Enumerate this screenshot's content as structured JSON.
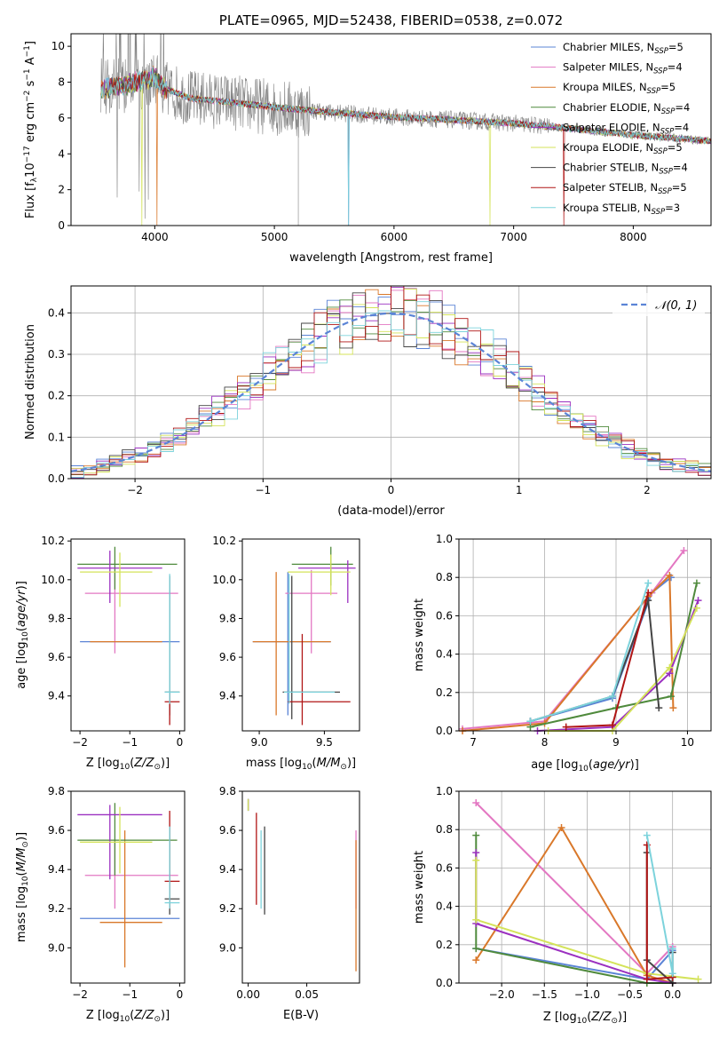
{
  "colors": {
    "Chabrier MILES": "#5b84d6",
    "Salpeter MILES": "#e377c2",
    "Kroupa MILES": "#d9782a",
    "Chabrier ELODIE": "#4f8a3c",
    "Salpeter ELODIE": "#9b30c0",
    "Kroupa ELODIE": "#d4e35a",
    "Chabrier STELIB": "#444444",
    "Salpeter STELIB": "#b01515",
    "Kroupa STELIB": "#7dd3dc",
    "data": "#808080",
    "normal": "#5b84d6"
  },
  "chart_data": [
    {
      "id": "spectrum",
      "type": "line",
      "title": "PLATE=0965, MJD=52438, FIBERID=0538, z=0.072",
      "xlabel": "wavelength [Angstrom, rest frame]",
      "ylabel_main": "Flux [f",
      "ylabel_sub1": "λ",
      "ylabel_mid": "10",
      "ylabel_sup": "−17",
      "ylabel_rest": " erg cm",
      "ylabel_sup2": "−2",
      "ylabel_mid2": " s",
      "ylabel_sup3": "−1",
      "ylabel_mid3": " A",
      "ylabel_sup4": "−1",
      "ylabel_end": "]",
      "xlim": [
        3300,
        8650
      ],
      "ylim": [
        0,
        10.7
      ],
      "xticks": [
        4000,
        5000,
        6000,
        7000,
        8000
      ],
      "yticks": [
        0,
        2,
        4,
        6,
        8,
        10
      ],
      "continuum": {
        "x": [
          3550,
          3700,
          3900,
          4000,
          4100,
          4300,
          4600,
          5000,
          5500,
          6000,
          6500,
          7000,
          7500,
          8000,
          8400,
          8650
        ],
        "y": [
          7.6,
          7.8,
          8.1,
          8.3,
          7.6,
          7.1,
          6.9,
          6.6,
          6.3,
          6.05,
          5.9,
          5.7,
          5.4,
          5.05,
          4.85,
          4.7
        ]
      },
      "legend": [
        {
          "model": "Chabrier MILES",
          "n": "5"
        },
        {
          "model": "Salpeter MILES",
          "n": "4"
        },
        {
          "model": "Kroupa MILES",
          "n": "5"
        },
        {
          "model": "Chabrier ELODIE",
          "n": "4"
        },
        {
          "model": "Salpeter ELODIE",
          "n": "4"
        },
        {
          "model": "Kroupa ELODIE",
          "n": "5"
        },
        {
          "model": "Chabrier STELIB",
          "n": "4"
        },
        {
          "model": "Salpeter STELIB",
          "n": "5"
        },
        {
          "model": "Kroupa STELIB",
          "n": "3"
        }
      ],
      "legend_prefix": "N",
      "legend_sub": "SSP",
      "legend_placement": "top-right"
    },
    {
      "id": "residuals",
      "type": "histogram",
      "xlabel": "(data-model)/error",
      "ylabel": "Normed distribution",
      "xlim": [
        -2.5,
        2.5
      ],
      "ylim": [
        0,
        0.465
      ],
      "xticks": [
        -2,
        -1,
        0,
        1,
        2
      ],
      "yticks": [
        0.0,
        0.1,
        0.2,
        0.3,
        0.4
      ],
      "legend_label": "𝒩(0, 1)",
      "legend_placement": "top-right",
      "bin_width": 0.1,
      "grid": true
    },
    {
      "id": "age_vs_Z",
      "type": "errorbar",
      "xlabel": "Z [log10(Z/Z⊙)]",
      "ylabel": "age  [log10(age/yr)]",
      "xlim": [
        -2.18,
        0.1
      ],
      "ylim": [
        9.22,
        10.21
      ],
      "xticks": [
        -2,
        -1,
        0
      ],
      "yticks": [
        9.4,
        9.6,
        9.8,
        10.0,
        10.2
      ],
      "grid": false,
      "points": [
        {
          "m": "Chabrier MILES",
          "x": -1.1,
          "y": 9.68,
          "xe": [
            -2.0,
            0.0
          ],
          "ye": [
            9.68,
            9.68
          ]
        },
        {
          "m": "Salpeter MILES",
          "x": -1.3,
          "y": 9.93,
          "xe": [
            -1.9,
            -0.03
          ],
          "ye": [
            9.62,
            10.04
          ]
        },
        {
          "m": "Kroupa MILES",
          "x": -1.1,
          "y": 9.68,
          "xe": [
            -1.8,
            -0.35
          ],
          "ye": [
            9.68,
            9.68
          ]
        },
        {
          "m": "Chabrier ELODIE",
          "x": -1.3,
          "y": 10.08,
          "xe": [
            -2.05,
            -0.05
          ],
          "ye": [
            9.95,
            10.17
          ]
        },
        {
          "m": "Salpeter ELODIE",
          "x": -1.4,
          "y": 10.06,
          "xe": [
            -2.05,
            -0.35
          ],
          "ye": [
            9.88,
            10.15
          ]
        },
        {
          "m": "Kroupa ELODIE",
          "x": -1.2,
          "y": 10.04,
          "xe": [
            -2.0,
            -0.55
          ],
          "ye": [
            9.86,
            10.14
          ]
        },
        {
          "m": "Chabrier STELIB",
          "x": -0.2,
          "y": 9.42,
          "xe": [
            -0.3,
            0.0
          ],
          "ye": [
            9.3,
            10.02
          ]
        },
        {
          "m": "Salpeter STELIB",
          "x": -0.2,
          "y": 9.37,
          "xe": [
            -0.3,
            0.0
          ],
          "ye": [
            9.25,
            9.42
          ]
        },
        {
          "m": "Kroupa STELIB",
          "x": -0.2,
          "y": 9.42,
          "xe": [
            -0.3,
            0.0
          ],
          "ye": [
            9.36,
            10.03
          ]
        }
      ]
    },
    {
      "id": "age_vs_mass",
      "type": "errorbar",
      "xlabel": "mass [log10(M/M⊙)]",
      "ylabel": "",
      "xlim": [
        8.87,
        9.77
      ],
      "ylim": [
        9.22,
        10.21
      ],
      "xticks": [
        9.0,
        9.5
      ],
      "yticks": [
        9.4,
        9.6,
        9.8,
        10.0,
        10.2
      ],
      "grid": false,
      "points": [
        {
          "m": "Chabrier MILES",
          "x": 9.22,
          "y": 9.68,
          "xe": [
            8.95,
            9.55
          ],
          "ye": [
            9.3,
            10.04
          ]
        },
        {
          "m": "Salpeter MILES",
          "x": 9.4,
          "y": 9.93,
          "xe": [
            9.2,
            9.6
          ],
          "ye": [
            9.62,
            10.05
          ]
        },
        {
          "m": "Kroupa MILES",
          "x": 9.13,
          "y": 9.68,
          "xe": [
            8.95,
            9.55
          ],
          "ye": [
            9.3,
            10.04
          ]
        },
        {
          "m": "Chabrier ELODIE",
          "x": 9.55,
          "y": 10.08,
          "xe": [
            9.25,
            9.72
          ],
          "ye": [
            9.97,
            10.17
          ]
        },
        {
          "m": "Salpeter ELODIE",
          "x": 9.68,
          "y": 10.06,
          "xe": [
            9.3,
            9.74
          ],
          "ye": [
            9.88,
            10.1
          ]
        },
        {
          "m": "Kroupa ELODIE",
          "x": 9.55,
          "y": 10.04,
          "xe": [
            9.22,
            9.7
          ],
          "ye": [
            9.92,
            10.13
          ]
        },
        {
          "m": "Chabrier STELIB",
          "x": 9.25,
          "y": 9.42,
          "xe": [
            9.18,
            9.62
          ],
          "ye": [
            9.28,
            10.02
          ]
        },
        {
          "m": "Salpeter STELIB",
          "x": 9.33,
          "y": 9.37,
          "xe": [
            9.22,
            9.7
          ],
          "ye": [
            9.25,
            9.72
          ]
        },
        {
          "m": "Kroupa STELIB",
          "x": 9.23,
          "y": 9.42,
          "xe": [
            9.19,
            9.58
          ],
          "ye": [
            9.36,
            10.03
          ]
        }
      ]
    },
    {
      "id": "weight_vs_age",
      "type": "line",
      "xlabel": "age  [log10(age/yr)]",
      "ylabel": "mass weight",
      "xlim": [
        6.8,
        10.33
      ],
      "ylim": [
        0,
        1.0
      ],
      "xticks": [
        7,
        8,
        9,
        10
      ],
      "yticks": [
        0.0,
        0.2,
        0.4,
        0.6,
        0.8,
        1.0
      ],
      "grid": true,
      "series": [
        {
          "m": "Chabrier MILES",
          "x": [
            7.8,
            8.95,
            9.5,
            9.77
          ],
          "y": [
            0.05,
            0.17,
            0.72,
            0.8
          ]
        },
        {
          "m": "Salpeter MILES",
          "x": [
            6.85,
            8.0,
            9.5,
            9.95
          ],
          "y": [
            0.01,
            0.05,
            0.72,
            0.94
          ]
        },
        {
          "m": "Kroupa MILES",
          "x": [
            6.85,
            8.0,
            9.45,
            9.75,
            9.8
          ],
          "y": [
            0.0,
            0.04,
            0.7,
            0.81,
            0.12
          ]
        },
        {
          "m": "Chabrier ELODIE",
          "x": [
            7.8,
            9.0,
            9.77,
            10.13
          ],
          "y": [
            0.02,
            0.12,
            0.18,
            0.77
          ]
        },
        {
          "m": "Salpeter ELODIE",
          "x": [
            7.9,
            8.95,
            9.75,
            10.15
          ],
          "y": [
            0.0,
            0.02,
            0.3,
            0.68
          ]
        },
        {
          "m": "Kroupa ELODIE",
          "x": [
            8.05,
            8.95,
            9.75,
            10.13
          ],
          "y": [
            0.0,
            0.0,
            0.33,
            0.64
          ]
        },
        {
          "m": "Chabrier STELIB",
          "x": [
            7.8,
            8.95,
            9.45,
            9.6
          ],
          "y": [
            0.05,
            0.18,
            0.68,
            0.12
          ]
        },
        {
          "m": "Salpeter STELIB",
          "x": [
            8.3,
            8.95,
            9.45
          ],
          "y": [
            0.02,
            0.03,
            0.72
          ]
        },
        {
          "m": "Kroupa STELIB",
          "x": [
            7.8,
            8.95,
            9.45
          ],
          "y": [
            0.05,
            0.18,
            0.77
          ]
        }
      ]
    },
    {
      "id": "mass_vs_Z",
      "type": "errorbar",
      "xlabel": "Z [log10(Z/Z⊙)]",
      "ylabel": "mass [log10(M/M⊙)]",
      "xlim": [
        -2.18,
        0.1
      ],
      "ylim": [
        8.82,
        9.8
      ],
      "xticks": [
        -2,
        -1,
        0
      ],
      "yticks": [
        9.0,
        9.2,
        9.4,
        9.6,
        9.8
      ],
      "grid": false,
      "points": [
        {
          "m": "Chabrier MILES",
          "x": -1.1,
          "y": 9.15,
          "xe": [
            -2.0,
            0.0
          ],
          "ye": [
            9.15,
            9.15
          ]
        },
        {
          "m": "Salpeter MILES",
          "x": -1.3,
          "y": 9.37,
          "xe": [
            -1.9,
            -0.03
          ],
          "ye": [
            9.2,
            9.55
          ]
        },
        {
          "m": "Kroupa MILES",
          "x": -1.1,
          "y": 9.13,
          "xe": [
            -1.6,
            -0.35
          ],
          "ye": [
            8.9,
            9.6
          ]
        },
        {
          "m": "Chabrier ELODIE",
          "x": -1.3,
          "y": 9.55,
          "xe": [
            -2.05,
            -0.05
          ],
          "ye": [
            9.37,
            9.74
          ]
        },
        {
          "m": "Salpeter ELODIE",
          "x": -1.4,
          "y": 9.68,
          "xe": [
            -2.05,
            -0.35
          ],
          "ye": [
            9.35,
            9.73
          ]
        },
        {
          "m": "Kroupa ELODIE",
          "x": -1.2,
          "y": 9.54,
          "xe": [
            -2.0,
            -0.55
          ],
          "ye": [
            9.38,
            9.72
          ]
        },
        {
          "m": "Chabrier STELIB",
          "x": -0.2,
          "y": 9.25,
          "xe": [
            -0.3,
            0.0
          ],
          "ye": [
            9.17,
            9.62
          ]
        },
        {
          "m": "Salpeter STELIB",
          "x": -0.2,
          "y": 9.34,
          "xe": [
            -0.3,
            0.0
          ],
          "ye": [
            9.2,
            9.7
          ]
        },
        {
          "m": "Kroupa STELIB",
          "x": -0.2,
          "y": 9.23,
          "xe": [
            -0.3,
            0.0
          ],
          "ye": [
            9.2,
            9.62
          ]
        }
      ]
    },
    {
      "id": "mass_vs_ebv",
      "type": "errorbar",
      "xlabel": "E(B-V)",
      "ylabel": "",
      "xlim": [
        -0.005,
        0.095
      ],
      "ylim": [
        8.82,
        9.8
      ],
      "xticks": [
        0.0,
        0.05
      ],
      "yticks": [
        9.0,
        9.2,
        9.4,
        9.6,
        9.8
      ],
      "grid": false,
      "points": [
        {
          "m": "Chabrier MILES",
          "x": 0.0,
          "y": 9.74,
          "xe": [
            0.0,
            0.0
          ],
          "ye": [
            9.7,
            9.76
          ]
        },
        {
          "m": "Salpeter MILES",
          "x": 0.092,
          "y": 9.5,
          "xe": [
            0.092,
            0.092
          ],
          "ye": [
            9.2,
            9.6
          ]
        },
        {
          "m": "Kroupa MILES",
          "x": 0.092,
          "y": 9.5,
          "xe": [
            0.092,
            0.092
          ],
          "ye": [
            8.88,
            9.55
          ]
        },
        {
          "m": "Chabrier ELODIE",
          "x": 0.0,
          "y": 9.74,
          "xe": [
            0.0,
            0.0
          ],
          "ye": [
            9.7,
            9.76
          ]
        },
        {
          "m": "Salpeter ELODIE",
          "x": 0.0,
          "y": 9.74,
          "xe": [
            0.0,
            0.0
          ],
          "ye": [
            9.7,
            9.76
          ]
        },
        {
          "m": "Kroupa ELODIE",
          "x": 0.0,
          "y": 9.74,
          "xe": [
            0.0,
            0.0
          ],
          "ye": [
            9.7,
            9.76
          ]
        },
        {
          "m": "Chabrier STELIB",
          "x": 0.014,
          "y": 9.6,
          "xe": [
            0.014,
            0.014
          ],
          "ye": [
            9.17,
            9.62
          ]
        },
        {
          "m": "Salpeter STELIB",
          "x": 0.007,
          "y": 9.6,
          "xe": [
            0.007,
            0.007
          ],
          "ye": [
            9.22,
            9.69
          ]
        },
        {
          "m": "Kroupa STELIB",
          "x": 0.011,
          "y": 9.6,
          "xe": [
            0.011,
            0.011
          ],
          "ye": [
            9.2,
            9.6
          ]
        }
      ]
    },
    {
      "id": "weight_vs_Z",
      "type": "line",
      "xlabel": "Z [log10(Z/Z⊙)]",
      "ylabel": "mass weight",
      "xlim": [
        -2.5,
        0.45
      ],
      "ylim": [
        0,
        1.0
      ],
      "xticks": [
        -2.0,
        -1.5,
        -1.0,
        -0.5,
        0.0
      ],
      "yticks": [
        0.0,
        0.2,
        0.4,
        0.6,
        0.8,
        1.0
      ],
      "grid": true,
      "series": [
        {
          "m": "Chabrier MILES",
          "x": [
            -2.3,
            -0.3,
            0.0
          ],
          "y": [
            0.18,
            0.02,
            0.17
          ]
        },
        {
          "m": "Salpeter MILES",
          "x": [
            -2.3,
            -0.3,
            0.0
          ],
          "y": [
            0.94,
            0.05,
            0.19
          ]
        },
        {
          "m": "Kroupa MILES",
          "x": [
            -2.3,
            -1.3,
            -0.3,
            0.0
          ],
          "y": [
            0.12,
            0.81,
            0.04,
            0.0
          ]
        },
        {
          "m": "Chabrier ELODIE",
          "x": [
            -2.3,
            -2.3,
            -0.3,
            0.0
          ],
          "y": [
            0.77,
            0.18,
            0.0,
            0.0
          ]
        },
        {
          "m": "Salpeter ELODIE",
          "x": [
            -2.3,
            -2.3,
            -0.3,
            0.0
          ],
          "y": [
            0.68,
            0.31,
            0.02,
            0.0
          ]
        },
        {
          "m": "Kroupa ELODIE",
          "x": [
            -2.3,
            -2.3,
            -0.3,
            0.3
          ],
          "y": [
            0.64,
            0.33,
            0.05,
            0.02
          ]
        },
        {
          "m": "Chabrier STELIB",
          "x": [
            -0.3,
            -0.3,
            0.0,
            0.0
          ],
          "y": [
            0.68,
            0.12,
            0.0,
            0.16
          ]
        },
        {
          "m": "Salpeter STELIB",
          "x": [
            -0.3,
            -0.3,
            0.0
          ],
          "y": [
            0.72,
            0.02,
            0.03
          ]
        },
        {
          "m": "Kroupa STELIB",
          "x": [
            -0.3,
            0.0,
            0.0
          ],
          "y": [
            0.77,
            0.05,
            0.18
          ]
        }
      ]
    }
  ]
}
